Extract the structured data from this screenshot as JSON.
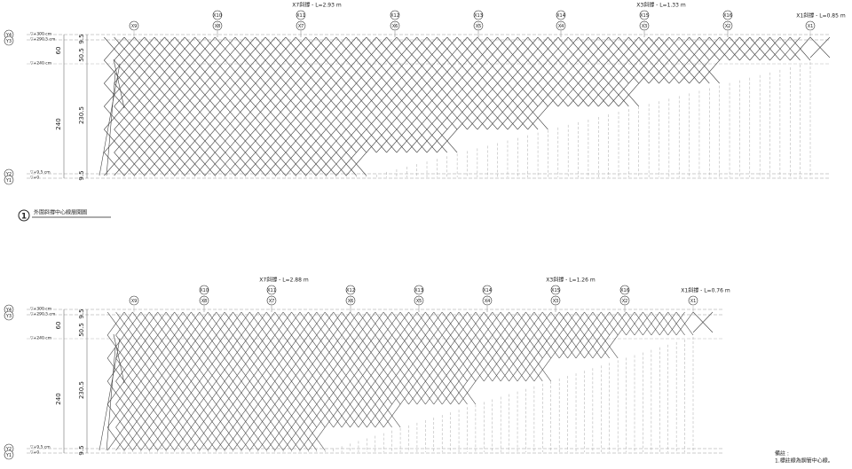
{
  "drawings": [
    {
      "grid_upper": [
        "X10",
        "X11",
        "X12",
        "X13",
        "X14",
        "X15",
        "X16"
      ],
      "grid_lower": [
        "X9",
        "X8",
        "X7",
        "X6",
        "X5",
        "X4",
        "X3",
        "X2",
        "X1"
      ],
      "annotations": [
        "X7斜撐 - L=2.93 m",
        "X3斜撐 - L=1.33 m",
        "X1斜撐 - L=0.85 m"
      ],
      "y_labels": [
        "Y4",
        "Y3",
        "Y2",
        "Y1"
      ],
      "levels": [
        "▽+300 cm",
        "▽+290.5 cm",
        "▽+240 cm",
        "▽+9.5 cm",
        "▽+0"
      ],
      "dimensions": [
        "9.5",
        "50.5",
        "60",
        "230.5",
        "240",
        "9.5"
      ]
    },
    {
      "grid_upper": [
        "X10",
        "X11",
        "X12",
        "X13",
        "X14",
        "X15",
        "X16"
      ],
      "grid_lower": [
        "X9",
        "X8",
        "X7",
        "X6",
        "X5",
        "X4",
        "X3",
        "X2",
        "X1"
      ],
      "annotations": [
        "X7斜撐 - L=2.88 m",
        "X3斜撐 - L=1.26 m",
        "X1斜撐 - L=0.76 m"
      ],
      "y_labels": [
        "Y4",
        "Y3",
        "Y2",
        "Y1"
      ],
      "levels": [
        "▽+300 cm",
        "▽+290.5 cm",
        "▽+240 cm",
        "▽+9.5 cm",
        "▽+0"
      ],
      "dimensions": [
        "9.5",
        "50.5",
        "60",
        "230.5",
        "240",
        "9.5"
      ]
    }
  ],
  "title": {
    "number": "1",
    "text": "外圍斜撐中心線展開圖"
  },
  "note": {
    "heading": "備註 :",
    "items": [
      "1.標註線為鋼管中心線。"
    ]
  }
}
